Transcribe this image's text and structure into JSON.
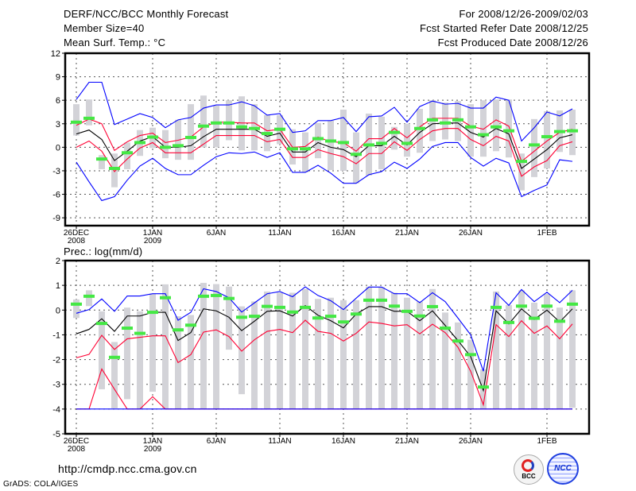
{
  "header": {
    "title": "DERF/NCC/BCC Monthly Forecast",
    "member_size": "Member Size=40",
    "variable": "Mean Surf. Temp.: °C",
    "period": "For 2008/12/26-2009/02/03",
    "start_date": "Fcst Started Refer Date 2008/12/25",
    "produced_date": "Fcst Produced Date 2008/12/26"
  },
  "footer": {
    "url": "http://cmdp.ncc.cma.gov.cn",
    "credit": "GrADS: COLA/IGES",
    "logo_bcc": "BCC",
    "logo_ncc": "NCC"
  },
  "colors": {
    "mean": "#000000",
    "spread": "#ff0033",
    "extreme": "#0000ff",
    "green": "#44e844",
    "box": "#d3d3d8"
  },
  "chart_data": [
    {
      "type": "line",
      "title": "Mean Surf. Temp.: °C",
      "x_unit": "day offset from 26DEC2008",
      "x": [
        0,
        1,
        2,
        3,
        4,
        5,
        6,
        7,
        8,
        9,
        10,
        11,
        12,
        13,
        14,
        15,
        16,
        17,
        18,
        19,
        20,
        21,
        22,
        23,
        24,
        25,
        26,
        27,
        28,
        29,
        30,
        31,
        32,
        33,
        34,
        35,
        36,
        37,
        38,
        39
      ],
      "xticks": [
        {
          "day": 0,
          "label": "26DEC",
          "sub": "2008"
        },
        {
          "day": 6,
          "label": "1JAN",
          "sub": "2009"
        },
        {
          "day": 11,
          "label": "6JAN",
          "sub": ""
        },
        {
          "day": 16,
          "label": "11JAN",
          "sub": ""
        },
        {
          "day": 21,
          "label": "16JAN",
          "sub": ""
        },
        {
          "day": 26,
          "label": "21JAN",
          "sub": ""
        },
        {
          "day": 31,
          "label": "26JAN",
          "sub": ""
        },
        {
          "day": 37,
          "label": "1FEB",
          "sub": ""
        }
      ],
      "yticks": [
        12,
        9,
        6,
        3,
        0,
        -3,
        -6,
        -9
      ],
      "ylim": [
        -10,
        12
      ],
      "grid": true,
      "series": [
        {
          "name": "ensemble-mean",
          "color": "#000000",
          "values": [
            1.7,
            2.2,
            1.0,
            -1.7,
            -0.5,
            0.8,
            1.35,
            0,
            0,
            0.2,
            1.35,
            2.3,
            2.3,
            2.3,
            2.3,
            1.4,
            1.8,
            -0.6,
            -0.6,
            0.6,
            0,
            -0.3,
            -1.2,
            0.2,
            0.2,
            1.4,
            0.3,
            1.9,
            3.0,
            3.1,
            3.1,
            1.9,
            1.3,
            2.4,
            1.7,
            -2.7,
            -1.5,
            -0.3,
            1.2,
            1.6
          ]
        },
        {
          "name": "upper-spread",
          "color": "#ff0033",
          "values": [
            2.8,
            3.6,
            3.0,
            -0.4,
            0.7,
            1.5,
            1.8,
            0.6,
            0.9,
            1.3,
            2.6,
            3.2,
            3.2,
            3.1,
            3.1,
            2.1,
            2.3,
            0,
            0.1,
            1.3,
            0.7,
            0.6,
            -0.5,
            1.1,
            1.1,
            2.4,
            1.2,
            2.6,
            3.7,
            3.7,
            3.7,
            2.7,
            2.3,
            3.5,
            2.7,
            -1.8,
            -0.5,
            0.8,
            1.9,
            2.3
          ]
        },
        {
          "name": "lower-spread",
          "color": "#ff0033",
          "values": [
            0,
            0.8,
            -0.5,
            -3.1,
            -1.5,
            -0.1,
            0.6,
            -0.7,
            -0.7,
            -0.7,
            0.4,
            1.5,
            1.5,
            1.5,
            1.5,
            0.7,
            1.0,
            -1.3,
            -1.3,
            -0.3,
            -0.8,
            -1.2,
            -2.1,
            -0.8,
            -0.8,
            0.7,
            -0.4,
            1.0,
            2.1,
            2.4,
            2.4,
            1.0,
            0.2,
            1.4,
            0.8,
            -3.7,
            -2.5,
            -1.7,
            0.2,
            0.7
          ]
        },
        {
          "name": "maximum",
          "color": "#0000ff",
          "values": [
            6.1,
            8.3,
            8.3,
            2.9,
            3.6,
            4.3,
            3.8,
            2.5,
            3.5,
            3.8,
            5.0,
            5.4,
            5.4,
            5.8,
            5.3,
            4.1,
            4.3,
            1.9,
            2.1,
            3.4,
            3.4,
            3.8,
            2.0,
            3.9,
            4.0,
            5.1,
            3.2,
            5.2,
            5.9,
            5.5,
            5.6,
            5.0,
            5.0,
            6.4,
            6.0,
            0.8,
            2.5,
            4.5,
            4.0,
            4.9
          ]
        },
        {
          "name": "minimum",
          "color": "#0000ff",
          "values": [
            -1.9,
            -4.4,
            -6.8,
            -6.3,
            -4.2,
            -2.4,
            -1.4,
            -2.7,
            -3.5,
            -3.5,
            -2.3,
            -1.2,
            -0.7,
            -0.8,
            -0.6,
            -1.3,
            -0.7,
            -3.2,
            -3.2,
            -2.3,
            -3.3,
            -4.6,
            -4.6,
            -3.5,
            -3.1,
            -1.9,
            -2.7,
            -1.5,
            0.1,
            0.6,
            0.6,
            -1.3,
            -2.4,
            -1.4,
            -2.0,
            -6.3,
            -5.5,
            -4.8,
            -1.6,
            -1.8
          ]
        }
      ],
      "markers": {
        "name": "green-marker",
        "values": [
          3.2,
          3.7,
          -1.5,
          -2.7,
          -0.7,
          0.6,
          1.3,
          0,
          0.2,
          1.25,
          2.7,
          3.1,
          3.1,
          2.6,
          2.4,
          1.75,
          2.3,
          -0.2,
          -0.2,
          1.1,
          0.8,
          0.6,
          -0.9,
          0.3,
          0.5,
          1.9,
          0.5,
          2.4,
          3.5,
          3.1,
          3.5,
          2.6,
          1.6,
          2.6,
          2.1,
          -1.8,
          0.3,
          1.35,
          2.0,
          2.1
        ]
      },
      "boxes": {
        "high": [
          5.5,
          6.1,
          -1.0,
          -0.8,
          0.6,
          2.2,
          2.5,
          2.2,
          3.5,
          5.5,
          6.6,
          5.3,
          6.0,
          6.5,
          5.5,
          4.1,
          4.1,
          2.3,
          1.9,
          3.1,
          3.4,
          4.8,
          1.9,
          4.3,
          3.9,
          2.6,
          3.0,
          4.9,
          6.0,
          5.7,
          5.9,
          5.5,
          6.0,
          6.1,
          6.1,
          -0.8,
          3.6,
          4.6,
          4.7,
          4.8
        ],
        "low": [
          1.5,
          2.8,
          -2.8,
          -5.1,
          -2.8,
          -1.1,
          -0.1,
          -1.4,
          -1.6,
          -1.6,
          0,
          0,
          0.9,
          -0.4,
          -0.4,
          -0.5,
          0.4,
          -2.2,
          -3.2,
          -1.4,
          -2.9,
          -3.0,
          -4.6,
          -3.6,
          -2.8,
          -0.3,
          -1.2,
          -0.7,
          0.8,
          1.0,
          0.8,
          -1.2,
          -1.2,
          -0.5,
          -1.3,
          -5.5,
          -3.8,
          -2.7,
          -0.6,
          -1.0
        ]
      }
    },
    {
      "type": "line",
      "title": "Prec.: log(mm/d)",
      "x_unit": "day offset from 26DEC2008",
      "x": [
        0,
        1,
        2,
        3,
        4,
        5,
        6,
        7,
        8,
        9,
        10,
        11,
        12,
        13,
        14,
        15,
        16,
        17,
        18,
        19,
        20,
        21,
        22,
        23,
        24,
        25,
        26,
        27,
        28,
        29,
        30,
        31,
        32,
        33,
        34,
        35,
        36,
        37,
        38,
        39
      ],
      "xticks": [
        {
          "day": 0,
          "label": "26DEC",
          "sub": "2008"
        },
        {
          "day": 6,
          "label": "1JAN",
          "sub": "2009"
        },
        {
          "day": 11,
          "label": "6JAN",
          "sub": ""
        },
        {
          "day": 16,
          "label": "11JAN",
          "sub": ""
        },
        {
          "day": 21,
          "label": "16JAN",
          "sub": ""
        },
        {
          "day": 26,
          "label": "21JAN",
          "sub": ""
        },
        {
          "day": 31,
          "label": "26JAN",
          "sub": ""
        },
        {
          "day": 37,
          "label": "1FEB",
          "sub": ""
        }
      ],
      "yticks": [
        2,
        1,
        0,
        -1,
        -2,
        -3,
        -4,
        -5
      ],
      "ylim": [
        -5,
        2
      ],
      "grid": true,
      "series": [
        {
          "name": "ensemble-mean",
          "color": "#000000",
          "values": [
            -0.96,
            -0.78,
            -0.35,
            -0.86,
            -0.24,
            -0.24,
            -0.09,
            -0.09,
            -1.23,
            -0.91,
            0.05,
            -0.03,
            -0.29,
            -0.83,
            -0.45,
            -0.05,
            -0.03,
            -0.24,
            0.18,
            -0.21,
            -0.43,
            -0.72,
            -0.16,
            0.14,
            0.14,
            -0.05,
            -0.05,
            -0.43,
            -0.03,
            -0.62,
            -1.23,
            -1.88,
            -3.25,
            -0.03,
            -0.56,
            0.05,
            -0.38,
            0,
            -0.48,
            0.05
          ]
        },
        {
          "name": "upper-spread",
          "color": "#ff0033",
          "values": [
            -1.93,
            -1.79,
            -1.02,
            -1.59,
            -1.16,
            -1.1,
            -1.04,
            -1.04,
            -2.12,
            -1.8,
            -0.89,
            -0.8,
            -1.07,
            -1.66,
            -1.2,
            -0.86,
            -0.78,
            -0.91,
            -0.41,
            -0.86,
            -0.94,
            -1.25,
            -0.94,
            -0.48,
            -0.54,
            -0.64,
            -0.59,
            -0.96,
            -0.57,
            -0.91,
            -1.5,
            -2.47,
            -3.83,
            -0.59,
            -1.07,
            -0.43,
            -0.94,
            -0.64,
            -1.16,
            -0.56
          ]
        },
        {
          "name": "lower-spread",
          "color": "#ff0033",
          "values": [
            -4,
            -4,
            -2.38,
            -3.2,
            -4,
            -4,
            -3.5,
            -4,
            -4,
            -4,
            -4,
            -4,
            -4,
            -4,
            -4,
            -4,
            -4,
            -4,
            -4,
            -4,
            -4,
            -4,
            -4,
            -4,
            -4,
            -4,
            -4,
            -4,
            -4,
            -4,
            -4,
            -4,
            -4,
            -4,
            -4,
            -4,
            -4,
            -4,
            -4,
            -4
          ]
        },
        {
          "name": "maximum",
          "color": "#0000ff",
          "values": [
            -0.13,
            0.02,
            0.45,
            -0.05,
            0.57,
            0.57,
            0.66,
            0.66,
            -0.41,
            -0.09,
            0.86,
            0.75,
            0.5,
            -0.08,
            0.29,
            0.66,
            0.75,
            0.54,
            0.94,
            0.59,
            0.38,
            0.02,
            0.48,
            0.93,
            0.93,
            0.66,
            0.66,
            0.3,
            0.7,
            0.34,
            -0.32,
            -1.0,
            -2.47,
            0.7,
            0.19,
            0.83,
            0.34,
            0.72,
            0.3,
            0.8
          ]
        },
        {
          "name": "minimum",
          "color": "#0000ff",
          "values": [
            -4,
            -4,
            -4,
            -4,
            -4,
            -4,
            -4,
            -4,
            -4,
            -4,
            -4,
            -4,
            -4,
            -4,
            -4,
            -4,
            -4,
            -4,
            -4,
            -4,
            -4,
            -4,
            -4,
            -4,
            -4,
            -4,
            -4,
            -4,
            -4,
            -4,
            -4,
            -4,
            -4,
            -4,
            -4,
            -4,
            -4,
            -4,
            -4,
            -4
          ]
        }
      ],
      "markers": {
        "name": "green-marker",
        "values": [
          0.24,
          0.56,
          -0.54,
          -1.91,
          -0.73,
          -0.94,
          -0.09,
          0.5,
          -0.8,
          -0.61,
          0.56,
          0.59,
          0.47,
          -0.29,
          -0.25,
          0.15,
          0.11,
          -0.08,
          0.11,
          -0.32,
          -0.25,
          -0.48,
          -0.16,
          0.4,
          0.4,
          0.16,
          -0.05,
          -0.24,
          0.14,
          -0.73,
          -1.25,
          -1.8,
          -3.11,
          0.11,
          -0.5,
          0.16,
          -0.33,
          0.16,
          -0.45,
          0.24
        ]
      },
      "boxes": {
        "high": [
          0.43,
          0.8,
          -0.05,
          -1.29,
          0.1,
          -0.05,
          0.66,
          1.04,
          -0.25,
          -0.2,
          1.1,
          1.05,
          0.95,
          0.15,
          0.35,
          0.75,
          0.7,
          0.7,
          0.85,
          0.45,
          0.5,
          0.4,
          0.4,
          0.95,
          0.93,
          0.7,
          0.5,
          0.35,
          0.85,
          -0.1,
          -0.5,
          -1.2,
          -2.4,
          0.75,
          0.2,
          0.8,
          0.3,
          0.65,
          0.1,
          0.8
        ],
        "low": [
          -0.32,
          0.16,
          -3.2,
          -3.97,
          -3.6,
          -4,
          -3.3,
          -4,
          -4,
          -4,
          -4,
          -4,
          -1.6,
          -3.4,
          -4,
          -4,
          -4,
          -4,
          -4,
          -4,
          -4,
          -4,
          -4,
          -4,
          -4,
          -4,
          -4,
          -4,
          -4,
          -4,
          -4,
          -4,
          -4,
          -4,
          -4,
          -4,
          -4,
          -4,
          -4,
          -3.95
        ]
      }
    }
  ]
}
